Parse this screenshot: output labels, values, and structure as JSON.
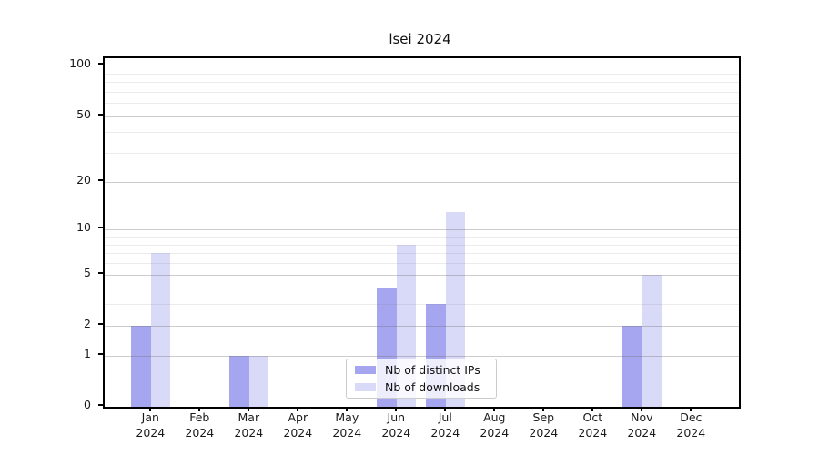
{
  "title": "lsei 2024",
  "colors": {
    "distinct_ips": "#a5a5f0",
    "downloads": "#d9d9f8",
    "axis": "#000000",
    "grid_major": "#c9c9c9",
    "grid_minor": "#ebebeb",
    "legend_border": "#cccccc"
  },
  "legend": {
    "items": [
      {
        "label": "Nb of distinct IPs"
      },
      {
        "label": "Nb of downloads"
      }
    ]
  },
  "chart_data": {
    "type": "bar",
    "title": "lsei 2024",
    "categories": [
      "Jan 2024",
      "Feb 2024",
      "Mar 2024",
      "Apr 2024",
      "May 2024",
      "Jun 2024",
      "Jul 2024",
      "Aug 2024",
      "Sep 2024",
      "Oct 2024",
      "Nov 2024",
      "Dec 2024"
    ],
    "month_labels": [
      {
        "month": "Jan",
        "year": "2024"
      },
      {
        "month": "Feb",
        "year": "2024"
      },
      {
        "month": "Mar",
        "year": "2024"
      },
      {
        "month": "Apr",
        "year": "2024"
      },
      {
        "month": "May",
        "year": "2024"
      },
      {
        "month": "Jun",
        "year": "2024"
      },
      {
        "month": "Jul",
        "year": "2024"
      },
      {
        "month": "Aug",
        "year": "2024"
      },
      {
        "month": "Sep",
        "year": "2024"
      },
      {
        "month": "Oct",
        "year": "2024"
      },
      {
        "month": "Nov",
        "year": "2024"
      },
      {
        "month": "Dec",
        "year": "2024"
      }
    ],
    "series": [
      {
        "name": "Nb of distinct IPs",
        "values": [
          2,
          0,
          1,
          0,
          0,
          4,
          3,
          0,
          0,
          0,
          2,
          0
        ],
        "color": "#a5a5f0"
      },
      {
        "name": "Nb of downloads",
        "values": [
          7,
          0,
          1,
          0,
          0,
          8,
          13,
          0,
          0,
          0,
          5,
          0
        ],
        "color": "#d9d9f8"
      }
    ],
    "xlabel": "",
    "ylabel": "",
    "y_scale": "log10(1+x)",
    "y_ticks_major": [
      100,
      50,
      20,
      10,
      5,
      2,
      1,
      0
    ],
    "y_ticks_minor": [
      3,
      4,
      6,
      7,
      8,
      9,
      30,
      40,
      60,
      70,
      80,
      90
    ],
    "ylim": [
      0,
      110
    ],
    "grid": true,
    "legend_position": "lower center inside"
  }
}
